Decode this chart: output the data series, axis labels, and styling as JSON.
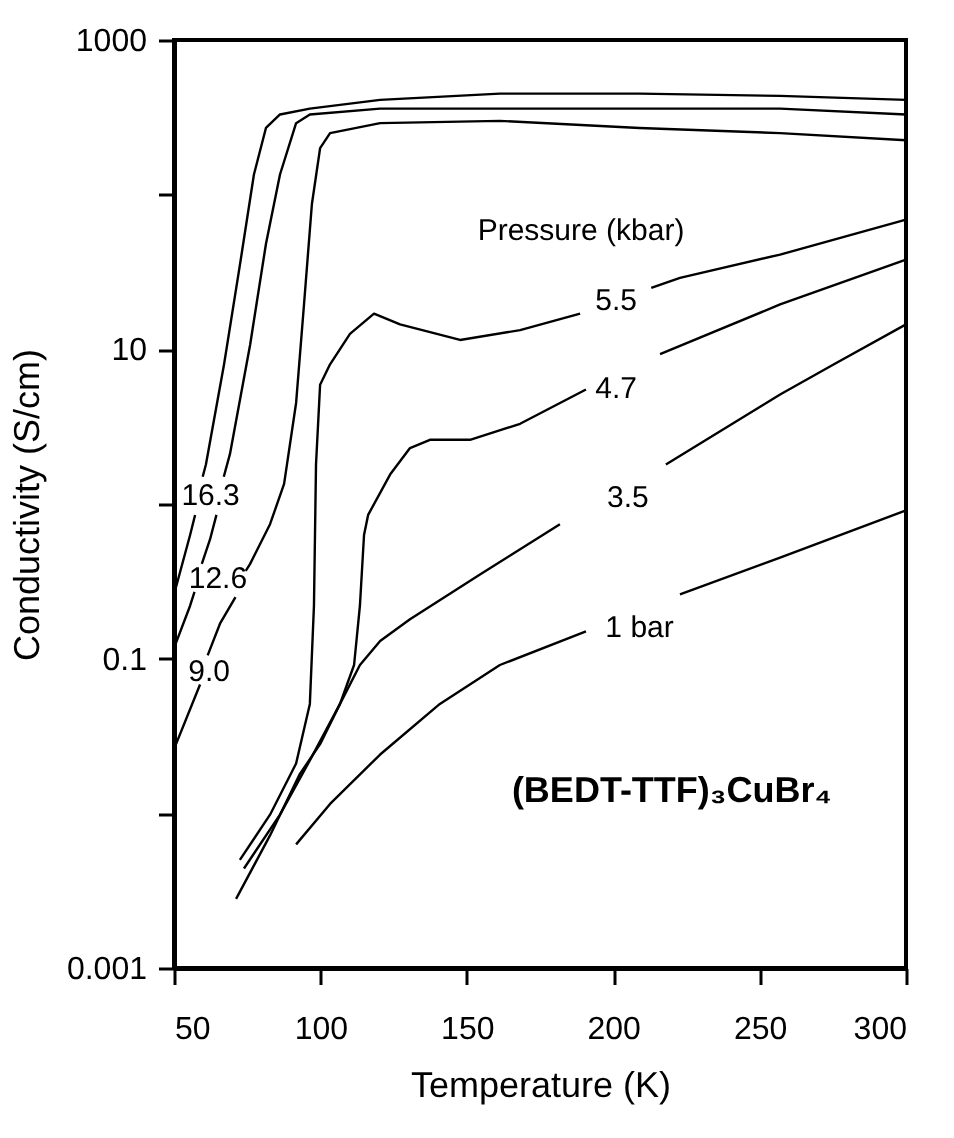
{
  "chart_data": {
    "type": "line",
    "xlabel": "Temperature  (K)",
    "ylabel": "Conductivity  (S/cm)",
    "log": "y",
    "xlim": [
      50,
      300
    ],
    "xticks": [
      50,
      100,
      150,
      200,
      250,
      300
    ],
    "ylim": [
      0.001,
      1000
    ],
    "yticks": [
      0.001,
      {
        "value": 0.01,
        "label": null
      },
      0.1,
      {
        "value": 1,
        "label": null
      },
      10,
      {
        "value": 100,
        "label": null
      },
      1000
    ],
    "grid": false,
    "legend": false,
    "marker": "none",
    "line_style": "solid",
    "series": [
      {
        "color": "#000000",
        "x": [
          50,
          55.5,
          57.2,
          58.3,
          59.8,
          60.9,
          67.1,
          72.5,
          77.3,
          81.4,
          86.2,
          96.4,
          120.4,
          161.3,
          209,
          257,
          300
        ],
        "values": [
          0.26,
          0.63,
          0.85,
          null,
          1.5,
          1.8,
          8,
          35,
          135,
          270,
          330,
          360,
          410,
          450,
          450,
          435,
          410
        ]
      },
      {
        "color": "#000000",
        "x": [
          50,
          55.5,
          57,
          58,
          59.5,
          62.3,
          64.5,
          65.5,
          67,
          69.1,
          76,
          81.4,
          86.2,
          91.7,
          96.4,
          120.4,
          188.7,
          257,
          300
        ],
        "values": [
          0.117,
          0.22,
          0.27,
          null,
          0.41,
          0.59,
          0.85,
          null,
          1.5,
          2.1,
          10.7,
          48,
          135,
          290,
          330,
          360,
          360,
          360,
          330
        ]
      },
      {
        "color": "#000000",
        "x": [
          50,
          58.9,
          59.5,
          61.5,
          65.8,
          71,
          72.5,
          74.5,
          76,
          82.8,
          87.6,
          91.7,
          94.4,
          97.1,
          99.9,
          103.3,
          120.4,
          161.3,
          209,
          257,
          300
        ],
        "values": [
          0.026,
          0.068,
          null,
          0.105,
          0.17,
          0.25,
          null,
          0.37,
          0.41,
          0.74,
          1.35,
          4.5,
          19.5,
          87,
          200,
          250,
          290,
          300,
          270,
          250,
          225
        ]
      },
      {
        "color": "#000000",
        "x": [
          72.5,
          82.8,
          91.7,
          96.4,
          97.8,
          98.5,
          99.9,
          103.3,
          110.1,
          118.3,
          127.2,
          147.7,
          168.2,
          188.7,
          201,
          213,
          222.8,
          257,
          300
        ],
        "values": [
          0.005,
          0.0098,
          0.021,
          0.051,
          0.22,
          1.8,
          5.9,
          8,
          12.6,
          17,
          14.5,
          11.5,
          13.3,
          17,
          null,
          25,
          29,
          41,
          69
        ]
      },
      {
        "color": "#000000",
        "x": [
          71.2,
          82.8,
          93,
          99.9,
          106.7,
          111.5,
          113.5,
          114.9,
          116.3,
          123.8,
          130.6,
          137.4,
          151.1,
          168.2,
          190.7,
          201,
          216,
          257,
          300
        ],
        "values": [
          0.0028,
          0.0072,
          0.018,
          0.028,
          0.051,
          0.091,
          0.22,
          0.63,
          0.85,
          1.55,
          2.3,
          2.6,
          2.6,
          3.3,
          5.5,
          null,
          9.3,
          19.5,
          38
        ]
      },
      {
        "color": "#000000",
        "x": [
          73.9,
          86.2,
          96.4,
          106.7,
          113.5,
          120.4,
          130.6,
          154.5,
          181.8,
          200,
          218,
          257,
          275.4,
          300
        ],
        "values": [
          0.0044,
          0.0098,
          0.022,
          0.051,
          0.091,
          0.13,
          0.18,
          0.35,
          0.74,
          null,
          1.8,
          5.1,
          8,
          14.5
        ]
      },
      {
        "color": "#000000",
        "x": [
          91.7,
          103.3,
          120.4,
          140.8,
          161.3,
          190.7,
          207,
          222.8,
          257,
          300
        ],
        "values": [
          0.0063,
          0.0115,
          0.024,
          0.051,
          0.091,
          0.15,
          null,
          0.26,
          0.45,
          0.91
        ]
      }
    ],
    "annotations": [
      "16.3",
      "12.6",
      "9.0",
      "5.5",
      "4.7",
      "3.5",
      "1 bar",
      "Pressure  (kbar)",
      "(BEDT-TTF)₃CuBr₄"
    ]
  }
}
